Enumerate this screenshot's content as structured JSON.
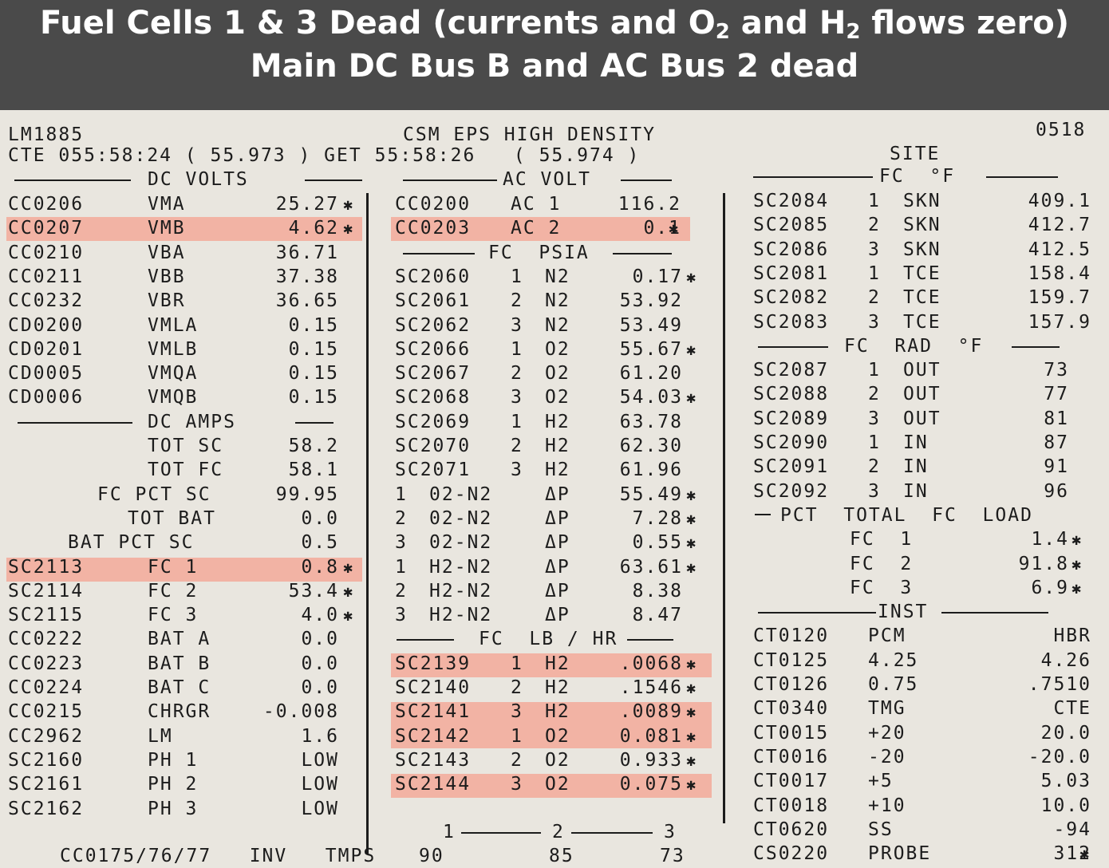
{
  "banner": {
    "line1_a": "Fuel Cells 1 & 3 Dead (currents and O",
    "line1_sub1": "2",
    "line1_b": " and H",
    "line1_sub2": "2",
    "line1_c": " flows zero)",
    "line2": "Main DC Bus B and AC Bus 2 dead"
  },
  "header": {
    "lm": "LM1885",
    "title": "CSM EPS HIGH DENSITY",
    "code": "0518",
    "cte": "CTE 055:58:24 ( 55.973 ) GET 55:58:26   ( 55.974 )",
    "site": "SITE"
  },
  "col1": {
    "dc_volts": "DC VOLTS",
    "volts": [
      [
        "CC0206",
        "VMA",
        "25.27",
        "*"
      ],
      [
        "CC0207",
        "VMB",
        "4.62",
        "*"
      ],
      [
        "CC0210",
        "VBA",
        "36.71",
        ""
      ],
      [
        "CC0211",
        "VBB",
        "37.38",
        ""
      ],
      [
        "CC0232",
        "VBR",
        "36.65",
        ""
      ],
      [
        "CD0200",
        "VMLA",
        "0.15",
        ""
      ],
      [
        "CD0201",
        "VMLB",
        "0.15",
        ""
      ],
      [
        "CD0005",
        "VMQA",
        "0.15",
        ""
      ],
      [
        "CD0006",
        "VMQB",
        "0.15",
        ""
      ]
    ],
    "dc_amps": "DC AMPS",
    "amps": [
      [
        "TOT SC",
        "58.2"
      ],
      [
        "TOT FC",
        "58.1"
      ],
      [
        "FC PCT SC",
        "99.95"
      ],
      [
        "TOT BAT",
        "0.0"
      ],
      [
        "BAT PCT SC",
        "0.5"
      ]
    ],
    "rows": [
      [
        "SC2113",
        "FC 1",
        "0.8",
        "*"
      ],
      [
        "SC2114",
        "FC 2",
        "53.4",
        "*"
      ],
      [
        "SC2115",
        "FC 3",
        "4.0",
        "*"
      ],
      [
        "CC0222",
        "BAT A",
        "0.0",
        ""
      ],
      [
        "CC0223",
        "BAT B",
        "0.0",
        ""
      ],
      [
        "CC0224",
        "BAT C",
        "0.0",
        ""
      ],
      [
        "CC0215",
        "CHRGR",
        "-0.008",
        ""
      ],
      [
        "CC2962",
        "LM",
        "1.6",
        ""
      ],
      [
        "SC2160",
        "PH 1",
        "LOW",
        ""
      ],
      [
        "SC2161",
        "PH 2",
        "LOW",
        ""
      ],
      [
        "SC2162",
        "PH 3",
        "LOW",
        ""
      ]
    ],
    "tmps_label": "CC0175/76/77   INV   TMPS",
    "tmps": [
      "90",
      "85",
      "73"
    ],
    "tmps_cols": [
      "1",
      "2",
      "3"
    ]
  },
  "col2": {
    "ac_volt": "AC VOLT",
    "ac": [
      [
        "CC0200",
        "AC 1",
        "116.2",
        ""
      ],
      [
        "CC0203",
        "AC 2",
        "0.1",
        "*"
      ]
    ],
    "fc_psia": "FC  PSIA",
    "psia": [
      [
        "SC2060",
        "1",
        "N2",
        "0.17",
        "*"
      ],
      [
        "SC2061",
        "2",
        "N2",
        "53.92",
        ""
      ],
      [
        "SC2062",
        "3",
        "N2",
        "53.49",
        ""
      ],
      [
        "SC2066",
        "1",
        "O2",
        "55.67",
        "*"
      ],
      [
        "SC2067",
        "2",
        "O2",
        "61.20",
        ""
      ],
      [
        "SC2068",
        "3",
        "O2",
        "54.03",
        "*"
      ],
      [
        "SC2069",
        "1",
        "H2",
        "63.78",
        ""
      ],
      [
        "SC2070",
        "2",
        "H2",
        "62.30",
        ""
      ],
      [
        "SC2071",
        "3",
        "H2",
        "61.96",
        ""
      ]
    ],
    "dp": [
      [
        "1",
        "02-N2",
        "ΔP",
        "55.49",
        "*"
      ],
      [
        "2",
        "02-N2",
        "ΔP",
        "7.28",
        "*"
      ],
      [
        "3",
        "02-N2",
        "ΔP",
        "0.55",
        "*"
      ],
      [
        "1",
        "H2-N2",
        "ΔP",
        "63.61",
        "*"
      ],
      [
        "2",
        "H2-N2",
        "ΔP",
        "8.38",
        ""
      ],
      [
        "3",
        "H2-N2",
        "ΔP",
        "8.47",
        ""
      ]
    ],
    "fc_lbhr": "FC  LB / HR",
    "flows": [
      [
        "SC2139",
        "1",
        "H2",
        ".0068",
        "*"
      ],
      [
        "SC2140",
        "2",
        "H2",
        ".1546",
        "*"
      ],
      [
        "SC2141",
        "3",
        "H2",
        ".0089",
        "*"
      ],
      [
        "SC2142",
        "1",
        "O2",
        "0.081",
        "*"
      ],
      [
        "SC2143",
        "2",
        "O2",
        "0.933",
        "*"
      ],
      [
        "SC2144",
        "3",
        "O2",
        "0.075",
        "*"
      ]
    ]
  },
  "col3": {
    "fc_f": "FC  °F",
    "temps": [
      [
        "SC2084",
        "1",
        "SKN",
        "409.1",
        ""
      ],
      [
        "SC2085",
        "2",
        "SKN",
        "412.7",
        ""
      ],
      [
        "SC2086",
        "3",
        "SKN",
        "412.5",
        ""
      ],
      [
        "SC2081",
        "1",
        "TCE",
        "158.4",
        ""
      ],
      [
        "SC2082",
        "2",
        "TCE",
        "159.7",
        ""
      ],
      [
        "SC2083",
        "3",
        "TCE",
        "157.9",
        ""
      ]
    ],
    "fc_rad": "FC  RAD  °F",
    "rad": [
      [
        "SC2087",
        "1",
        "OUT",
        "73",
        ""
      ],
      [
        "SC2088",
        "2",
        "OUT",
        "77",
        ""
      ],
      [
        "SC2089",
        "3",
        "OUT",
        "81",
        ""
      ],
      [
        "SC2090",
        "1",
        "IN",
        "87",
        ""
      ],
      [
        "SC2091",
        "2",
        "IN",
        "91",
        ""
      ],
      [
        "SC2092",
        "3",
        "IN",
        "96",
        ""
      ]
    ],
    "pct_load": "PCT  TOTAL  FC  LOAD",
    "loads": [
      [
        "FC  1",
        "1.4",
        "*"
      ],
      [
        "FC  2",
        "91.8",
        "*"
      ],
      [
        "FC  3",
        "6.9",
        "*"
      ]
    ],
    "inst": "INST",
    "inst_rows": [
      [
        "CT0120",
        "PCM",
        "HBR",
        ""
      ],
      [
        "CT0125",
        "4.25",
        "4.26",
        ""
      ],
      [
        "CT0126",
        "0.75",
        ".7510",
        ""
      ],
      [
        "CT0340",
        "TMG",
        "CTE",
        ""
      ],
      [
        "CT0015",
        "+20",
        "20.0",
        ""
      ],
      [
        "CT0016",
        "-20",
        "-20.0",
        ""
      ],
      [
        "CT0017",
        "+5",
        "5.03",
        ""
      ],
      [
        "CT0018",
        "+10",
        "10.0",
        ""
      ],
      [
        "CT0620",
        "SS",
        "-94",
        ""
      ],
      [
        "CS0220",
        "PROBE",
        "312",
        "*"
      ]
    ]
  }
}
